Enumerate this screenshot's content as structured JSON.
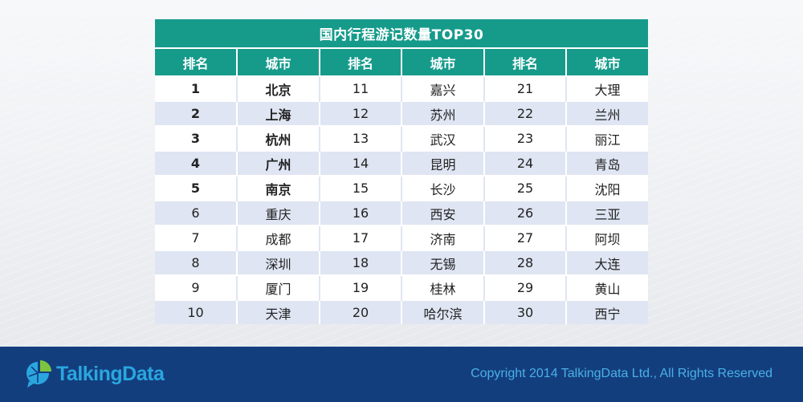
{
  "table": {
    "title": "国内行程游记数量TOP30",
    "headers": [
      "排名",
      "城市",
      "排名",
      "城市",
      "排名",
      "城市"
    ],
    "rows": [
      {
        "rank1": "1",
        "city1": "北京",
        "rank2": "11",
        "city2": "嘉兴",
        "rank3": "21",
        "city3": "大理"
      },
      {
        "rank1": "2",
        "city1": "上海",
        "rank2": "12",
        "city2": "苏州",
        "rank3": "22",
        "city3": "兰州"
      },
      {
        "rank1": "3",
        "city1": "杭州",
        "rank2": "13",
        "city2": "武汉",
        "rank3": "23",
        "city3": "丽江"
      },
      {
        "rank1": "4",
        "city1": "广州",
        "rank2": "14",
        "city2": "昆明",
        "rank3": "24",
        "city3": "青岛"
      },
      {
        "rank1": "5",
        "city1": "南京",
        "rank2": "15",
        "city2": "长沙",
        "rank3": "25",
        "city3": "沈阳"
      },
      {
        "rank1": "6",
        "city1": "重庆",
        "rank2": "16",
        "city2": "西安",
        "rank3": "26",
        "city3": "三亚"
      },
      {
        "rank1": "7",
        "city1": "成都",
        "rank2": "17",
        "city2": "济南",
        "rank3": "27",
        "city3": "阿坝"
      },
      {
        "rank1": "8",
        "city1": "深圳",
        "rank2": "18",
        "city2": "无锡",
        "rank3": "28",
        "city3": "大连"
      },
      {
        "rank1": "9",
        "city1": "厦门",
        "rank2": "19",
        "city2": "桂林",
        "rank3": "29",
        "city3": "黄山"
      },
      {
        "rank1": "10",
        "city1": "天津",
        "rank2": "20",
        "city2": "哈尔滨",
        "rank3": "30",
        "city3": "西宁"
      }
    ]
  },
  "footer": {
    "logo_text": "TalkingData",
    "logo_icon": "talkingdata-chat-pie-icon",
    "copyright": "Copyright 2014 TalkingData Ltd., All Rights Reserved"
  },
  "colors": {
    "header_teal": "#169b8b",
    "row_alt": "#dfe5f2",
    "footer_blue": "#133e7e",
    "logo_blue": "#2aa6df",
    "copyright_blue": "#4ab0e6"
  }
}
